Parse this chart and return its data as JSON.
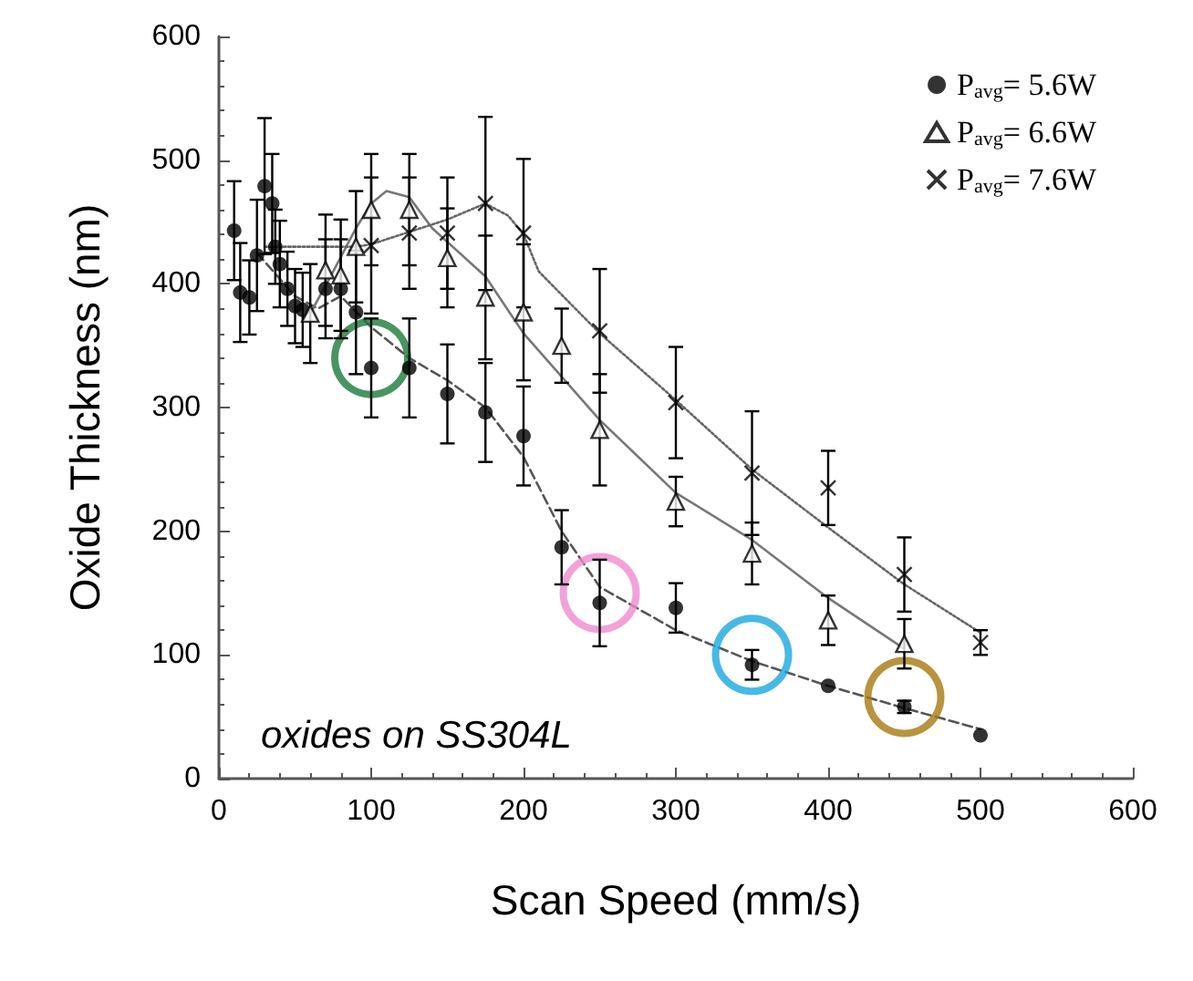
{
  "chart_data": {
    "type": "scatter",
    "xlabel": "Scan Speed (mm/s)",
    "ylabel": "Oxide Thickness (nm)",
    "xlim": [
      0,
      600
    ],
    "ylim": [
      0,
      600
    ],
    "xticks": [
      0,
      100,
      200,
      300,
      400,
      500,
      600
    ],
    "yticks": [
      0,
      100,
      200,
      300,
      400,
      500,
      600
    ],
    "grid": false,
    "legend": "top right",
    "annotations": [
      "oxides on SS304L"
    ],
    "series": [
      {
        "name": "P$_{avg}$= 5.6W",
        "color": "#000000",
        "marker": "circle",
        "x": [
          10,
          14,
          20,
          25,
          30,
          35,
          37,
          40,
          45,
          50,
          55,
          70,
          80,
          90,
          100,
          125,
          150,
          175,
          200,
          225,
          250,
          300,
          350,
          400,
          450,
          500
        ],
        "values": [
          443,
          393,
          389,
          423,
          479,
          465,
          430,
          416,
          396,
          382,
          379,
          396,
          396,
          377,
          332,
          332,
          311,
          296,
          277,
          187,
          142,
          138,
          92,
          75,
          58,
          35
        ],
        "errors": [
          40,
          40,
          30,
          45,
          55,
          40,
          30,
          35,
          30,
          30,
          30,
          40,
          40,
          50,
          40,
          40,
          40,
          40,
          40,
          30,
          35,
          20,
          12,
          null,
          5,
          null
        ]
      },
      {
        "name": "P$_{avg}$= 6.6W",
        "color": "#000000",
        "marker": "triangle",
        "x": [
          60,
          70,
          80,
          90,
          100,
          125,
          150,
          175,
          200,
          225,
          250,
          300,
          350,
          400,
          450
        ],
        "values": [
          376,
          411,
          407,
          430,
          460,
          460,
          421,
          389,
          377,
          350,
          282,
          224,
          182,
          128,
          109
        ],
        "errors": [
          40,
          45,
          45,
          45,
          45,
          45,
          40,
          50,
          55,
          30,
          45,
          20,
          25,
          20,
          20
        ]
      },
      {
        "name": "P$_{avg}$= 7.6W",
        "color": "#000000",
        "marker": "cross",
        "x": [
          100,
          125,
          150,
          175,
          200,
          250,
          300,
          350,
          400,
          450,
          500
        ],
        "values": [
          431,
          441,
          441,
          465,
          441,
          362,
          304,
          247,
          235,
          165,
          110
        ],
        "errors": [
          55,
          45,
          45,
          70,
          60,
          50,
          45,
          50,
          30,
          30,
          10
        ]
      },
      {
        "type": "line",
        "color": "#555555",
        "marker": "none",
        "line_style": "dashed",
        "x": [
          25,
          50,
          65,
          80,
          100,
          125,
          150,
          175,
          200,
          225,
          250,
          300,
          350,
          400,
          450,
          500
        ],
        "values": [
          425,
          390,
          380,
          390,
          365,
          340,
          322,
          300,
          260,
          200,
          155,
          120,
          95,
          75,
          57,
          40
        ]
      },
      {
        "type": "line",
        "color": "#777777",
        "marker": "none",
        "line_style": "solid",
        "x": [
          60,
          75,
          90,
          100,
          110,
          125,
          140,
          175,
          200,
          225,
          250,
          300,
          350,
          400,
          450
        ],
        "values": [
          376,
          410,
          445,
          465,
          475,
          470,
          445,
          406,
          360,
          325,
          290,
          231,
          193,
          146,
          105
        ]
      },
      {
        "type": "line",
        "color": "#666666",
        "marker": "none",
        "line_style": "dotted",
        "x": [
          30,
          60,
          90,
          100,
          125,
          150,
          175,
          190,
          200,
          210,
          250,
          300,
          350,
          400,
          450,
          500
        ],
        "values": [
          430,
          430,
          430,
          432,
          442,
          452,
          465,
          455,
          440,
          410,
          360,
          306,
          250,
          203,
          157,
          118
        ]
      },
      {
        "type": "scatter",
        "marker": "circle",
        "x": [
          100,
          250,
          350,
          450
        ],
        "values": [
          340,
          150,
          100,
          66
        ],
        "colors": [
          "#1a7a3a",
          "#f08ad0",
          "#19a8e0",
          "#a8780e"
        ]
      }
    ]
  }
}
